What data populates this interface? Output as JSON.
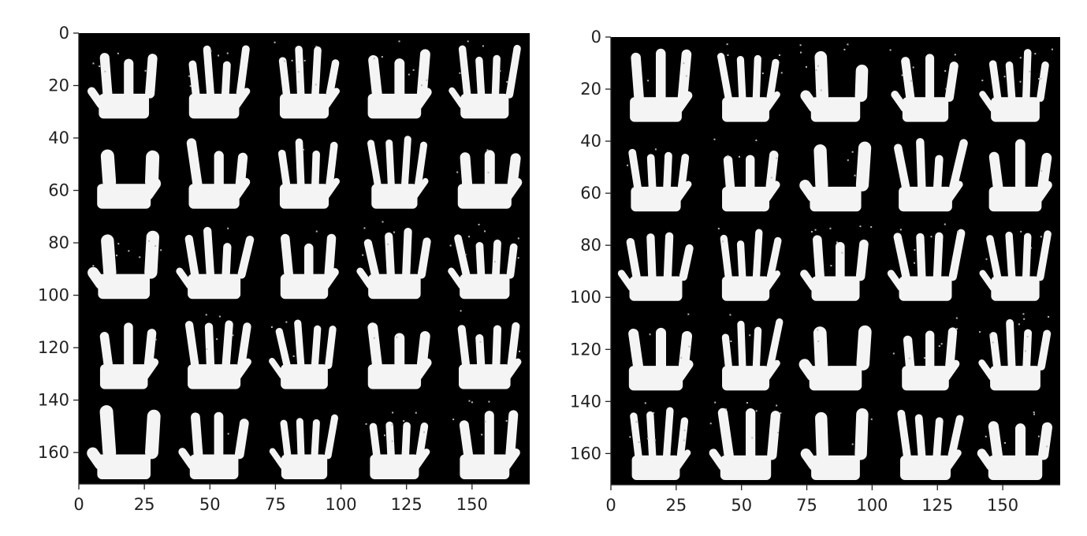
{
  "panels": [
    {
      "id": "left",
      "x_ticks": [
        "0",
        "25",
        "50",
        "75",
        "100",
        "125",
        "150"
      ],
      "y_ticks": [
        "0",
        "20",
        "40",
        "60",
        "80",
        "100",
        "120",
        "140",
        "160"
      ],
      "grid": {
        "rows": 5,
        "cols": 5
      },
      "image_content": "5x5 grid of white hand silhouettes on black background"
    },
    {
      "id": "right",
      "x_ticks": [
        "0",
        "25",
        "50",
        "75",
        "100",
        "125",
        "150"
      ],
      "y_ticks": [
        "0",
        "20",
        "40",
        "60",
        "80",
        "100",
        "120",
        "140",
        "160"
      ],
      "grid": {
        "rows": 5,
        "cols": 5
      },
      "image_content": "5x5 grid of white hand silhouettes on black background"
    }
  ],
  "colors": {
    "background": "#ffffff",
    "image_bg": "#000000",
    "hand": "#f4f4f4",
    "axis": "#222222"
  }
}
